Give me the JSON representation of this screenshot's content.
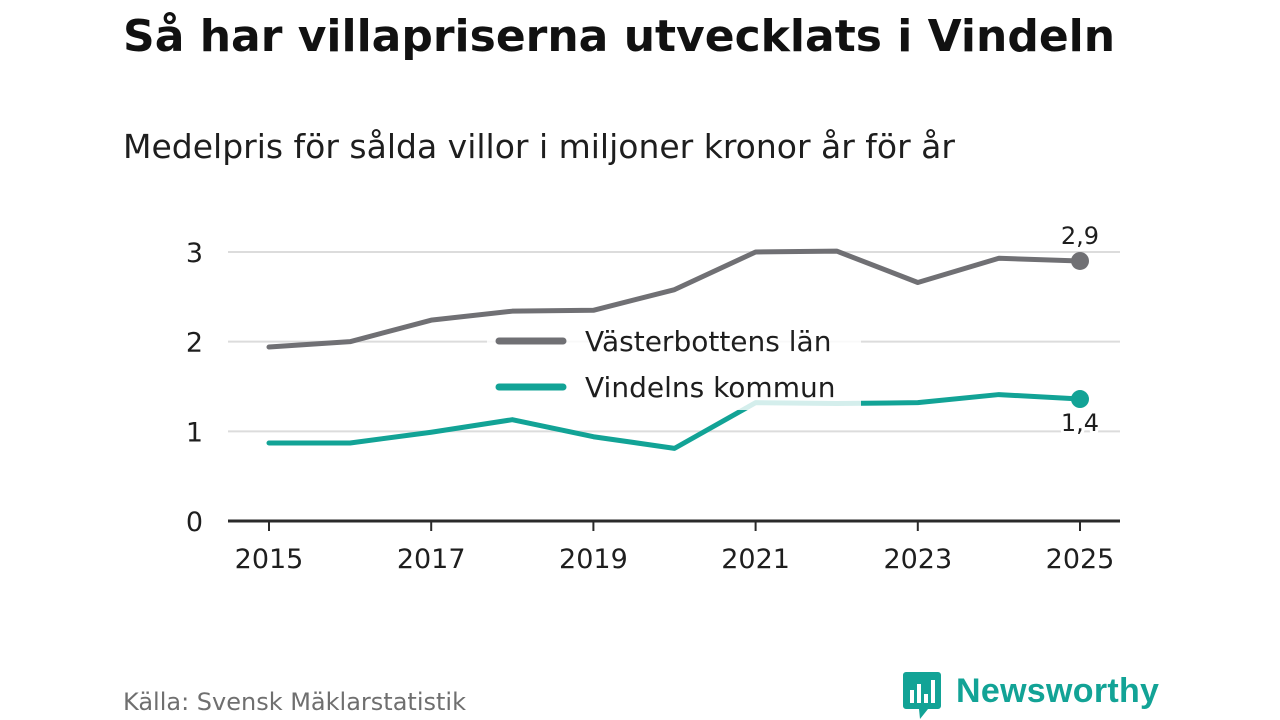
{
  "header": {
    "title": "Så har villapriserna utvecklats i Vindeln",
    "subtitle": "Medelpris för sålda villor i miljoner kronor år för år"
  },
  "footer": {
    "source": "Källa: Svensk Mäklarstatistik",
    "brand": "Newsworthy",
    "brand_icon": "bar-chart-speech-bubble-icon"
  },
  "colors": {
    "series_lan": "#707074",
    "series_kommun": "#12a396",
    "grid": "#dcdcdc",
    "axis": "#2a2a2a",
    "text": "#1e1e1e",
    "brand": "#12a396"
  },
  "chart_data": {
    "type": "line",
    "title": "Så har villapriserna utvecklats i Vindeln",
    "subtitle": "Medelpris för sålda villor i miljoner kronor år för år",
    "xlabel": "",
    "ylabel": "",
    "x": [
      2015,
      2016,
      2017,
      2018,
      2019,
      2020,
      2021,
      2022,
      2023,
      2024,
      2025
    ],
    "x_ticks": [
      "2015",
      "2017",
      "2019",
      "2021",
      "2023",
      "2025"
    ],
    "y_ticks": [
      "0",
      "1",
      "2",
      "3"
    ],
    "xlim": [
      2015,
      2025
    ],
    "ylim": [
      0,
      3.3
    ],
    "grid": true,
    "legend_position": "center",
    "series": [
      {
        "name": "Västerbottens län",
        "key": "lan",
        "values": [
          1.94,
          2.0,
          2.24,
          2.34,
          2.35,
          2.58,
          3.0,
          3.01,
          2.66,
          2.93,
          2.9
        ],
        "end_label": "2,9",
        "end_label_position": "above"
      },
      {
        "name": "Vindelns kommun",
        "key": "kommun",
        "values": [
          0.87,
          0.87,
          0.99,
          1.13,
          0.94,
          0.81,
          1.32,
          1.31,
          1.32,
          1.41,
          1.36
        ],
        "end_label": "1,4",
        "end_label_position": "below"
      }
    ]
  }
}
